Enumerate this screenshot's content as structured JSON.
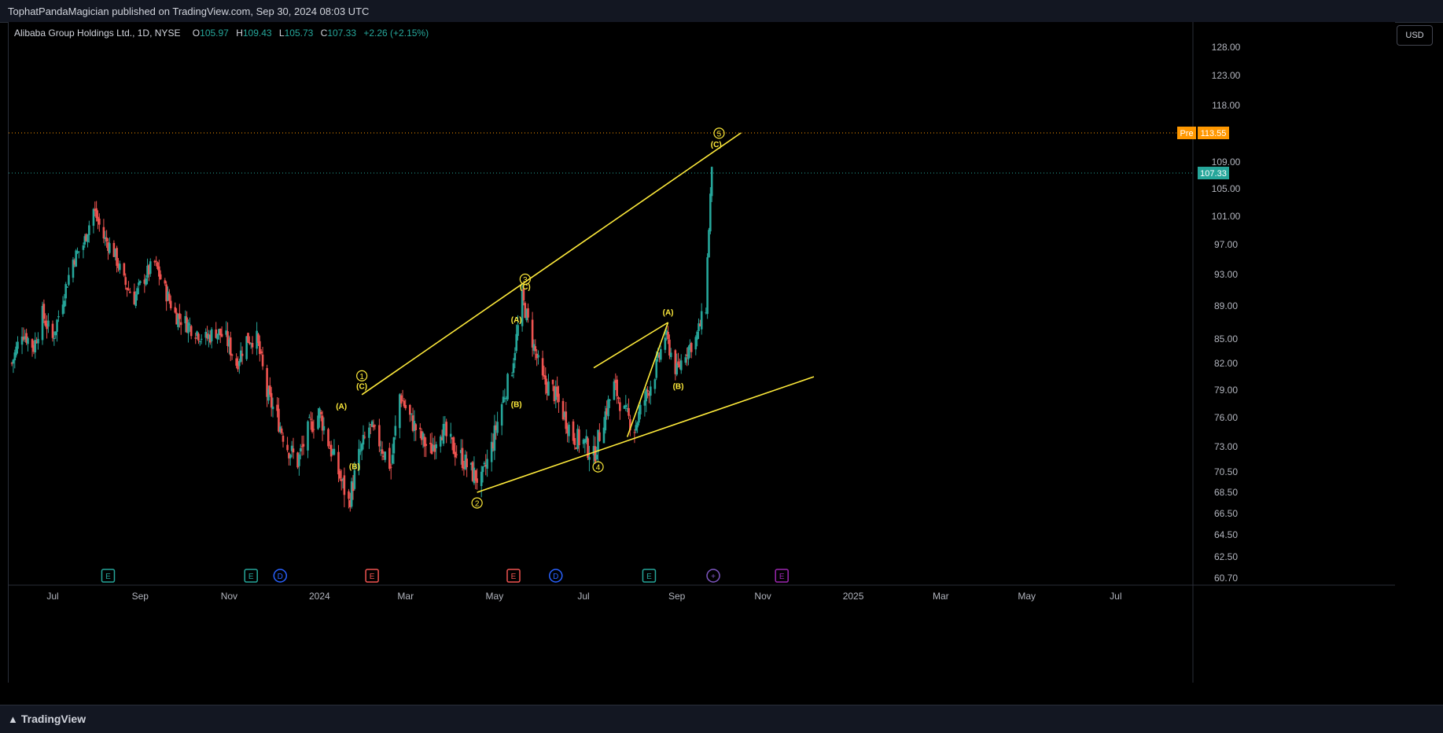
{
  "header": {
    "published": "TophatPandaMagician published on TradingView.com, Sep 30, 2024 08:03 UTC"
  },
  "legend": {
    "symbol": "Alibaba Group Holdings Ltd., 1D, NYSE",
    "open_label": "O",
    "open": "105.97",
    "high_label": "H",
    "high": "109.43",
    "low_label": "L",
    "low": "105.73",
    "close_label": "C",
    "close": "107.33",
    "change": "+2.26 (+2.15%)"
  },
  "currency_button": "USD",
  "footer": {
    "brand": "TradingView"
  },
  "colors": {
    "up": "#26a69a",
    "down": "#ef5350",
    "wave": "#ffeb3b",
    "pre": "#ff9800",
    "last": "#26a69a"
  },
  "chart_data": {
    "type": "candlestick",
    "symbol": "BABA",
    "interval": "1D",
    "y_axis_ticks": [
      128.0,
      123.0,
      118.0,
      113.55,
      109.0,
      105.0,
      101.0,
      97.0,
      93.0,
      89.0,
      85.0,
      82.0,
      79.0,
      76.0,
      73.0,
      70.5,
      68.5,
      66.5,
      64.5,
      62.5,
      60.7
    ],
    "y_axis_labels": [
      "128.00",
      "123.00",
      "118.00",
      "",
      "109.00",
      "105.00",
      "101.00",
      "97.00",
      "93.00",
      "89.00",
      "85.00",
      "82.00",
      "79.00",
      "76.00",
      "73.00",
      "70.50",
      "68.50",
      "66.50",
      "64.50",
      "62.50",
      "60.70"
    ],
    "x_axis_ticks": [
      {
        "label": "Jul",
        "date": "2023-07-03"
      },
      {
        "label": "Sep",
        "date": "2023-09-01"
      },
      {
        "label": "Nov",
        "date": "2023-11-01"
      },
      {
        "label": "2024",
        "date": "2024-01-02"
      },
      {
        "label": "Mar",
        "date": "2024-03-01"
      },
      {
        "label": "May",
        "date": "2024-05-01"
      },
      {
        "label": "Jul",
        "date": "2024-07-01"
      },
      {
        "label": "Sep",
        "date": "2024-09-03"
      },
      {
        "label": "Nov",
        "date": "2024-11-01"
      },
      {
        "label": "2025",
        "date": "2025-01-02"
      },
      {
        "label": "Mar",
        "date": "2025-03-03"
      },
      {
        "label": "May",
        "date": "2025-05-01"
      },
      {
        "label": "Jul",
        "date": "2025-07-01"
      }
    ],
    "price_lines": [
      {
        "tag": "Pre",
        "value": 113.55,
        "color": "#ff9800"
      },
      {
        "tag": "",
        "value": 107.33,
        "color": "#26a69a"
      }
    ],
    "price_path": [
      [
        "2023-06-05",
        82.0
      ],
      [
        "2023-06-12",
        86.0
      ],
      [
        "2023-06-20",
        84.0
      ],
      [
        "2023-06-26",
        88.0
      ],
      [
        "2023-07-03",
        85.0
      ],
      [
        "2023-07-10",
        90.0
      ],
      [
        "2023-07-17",
        95.0
      ],
      [
        "2023-07-24",
        97.0
      ],
      [
        "2023-07-31",
        102.0
      ],
      [
        "2023-08-07",
        98.0
      ],
      [
        "2023-08-14",
        96.0
      ],
      [
        "2023-08-21",
        92.0
      ],
      [
        "2023-08-28",
        90.0
      ],
      [
        "2023-09-05",
        93.0
      ],
      [
        "2023-09-11",
        94.5
      ],
      [
        "2023-09-18",
        91.0
      ],
      [
        "2023-09-25",
        88.0
      ],
      [
        "2023-10-02",
        87.0
      ],
      [
        "2023-10-09",
        86.0
      ],
      [
        "2023-10-16",
        85.0
      ],
      [
        "2023-10-23",
        86.0
      ],
      [
        "2023-10-30",
        85.0
      ],
      [
        "2023-11-06",
        82.0
      ],
      [
        "2023-11-13",
        85.0
      ],
      [
        "2023-11-20",
        85.0
      ],
      [
        "2023-11-27",
        78.5
      ],
      [
        "2023-12-04",
        76.0
      ],
      [
        "2023-12-11",
        73.0
      ],
      [
        "2023-12-18",
        71.5
      ],
      [
        "2023-12-26",
        75.0
      ],
      [
        "2024-01-02",
        76.5
      ],
      [
        "2024-01-08",
        73.5
      ],
      [
        "2024-01-16",
        70.0
      ],
      [
        "2024-01-22",
        67.5
      ],
      [
        "2024-01-29",
        72.0
      ],
      [
        "2024-02-05",
        75.0
      ],
      [
        "2024-02-12",
        73.5
      ],
      [
        "2024-02-20",
        71.0
      ],
      [
        "2024-02-26",
        78.5
      ],
      [
        "2024-03-04",
        76.0
      ],
      [
        "2024-03-11",
        74.0
      ],
      [
        "2024-03-18",
        72.5
      ],
      [
        "2024-03-25",
        75.0
      ],
      [
        "2024-04-02",
        73.0
      ],
      [
        "2024-04-08",
        72.0
      ],
      [
        "2024-04-15",
        70.5
      ],
      [
        "2024-04-22",
        69.5
      ],
      [
        "2024-04-29",
        73.0
      ],
      [
        "2024-05-06",
        77.5
      ],
      [
        "2024-05-13",
        81.5
      ],
      [
        "2024-05-20",
        90.0
      ],
      [
        "2024-05-28",
        84.0
      ],
      [
        "2024-06-03",
        80.0
      ],
      [
        "2024-06-10",
        79.0
      ],
      [
        "2024-06-17",
        76.5
      ],
      [
        "2024-06-24",
        74.0
      ],
      [
        "2024-07-01",
        73.5
      ],
      [
        "2024-07-08",
        72.0
      ],
      [
        "2024-07-15",
        76.0
      ],
      [
        "2024-07-22",
        79.5
      ],
      [
        "2024-07-29",
        76.5
      ],
      [
        "2024-08-05",
        75.0
      ],
      [
        "2024-08-12",
        78.0
      ],
      [
        "2024-08-19",
        81.0
      ],
      [
        "2024-08-26",
        85.5
      ],
      [
        "2024-09-03",
        81.0
      ],
      [
        "2024-09-09",
        83.5
      ],
      [
        "2024-09-16",
        85.0
      ],
      [
        "2024-09-23",
        89.0
      ],
      [
        "2024-09-24",
        95.0
      ],
      [
        "2024-09-26",
        104.0
      ],
      [
        "2024-09-27",
        107.33
      ]
    ],
    "trendlines": [
      {
        "from": [
          "2024-01-31",
          78.5
        ],
        "to": [
          "2024-10-17",
          113.55
        ]
      },
      {
        "from": [
          "2024-04-19",
          68.5
        ],
        "to": [
          "2024-12-06",
          80.5
        ]
      },
      {
        "from": [
          "2024-07-08",
          81.5
        ],
        "to": [
          "2024-08-28",
          87.0
        ]
      },
      {
        "from": [
          "2024-07-31",
          74.0
        ],
        "to": [
          "2024-08-28",
          87.0
        ]
      }
    ],
    "wave_labels": [
      {
        "text": "1",
        "circled": true,
        "date": "2024-01-31",
        "price": 80.6
      },
      {
        "text": "(C)",
        "date": "2024-01-31",
        "price": 79.5
      },
      {
        "text": "(A)",
        "date": "2024-01-17",
        "price": 77.3
      },
      {
        "text": "(B)",
        "date": "2024-01-26",
        "price": 71.1
      },
      {
        "text": "2",
        "circled": true,
        "date": "2024-04-19",
        "price": 67.5
      },
      {
        "text": "3",
        "circled": true,
        "date": "2024-05-22",
        "price": 92.4
      },
      {
        "text": "(C)",
        "date": "2024-05-22",
        "price": 91.5
      },
      {
        "text": "(A)",
        "date": "2024-05-16",
        "price": 87.4
      },
      {
        "text": "(B)",
        "date": "2024-05-16",
        "price": 77.5
      },
      {
        "text": "4",
        "circled": true,
        "date": "2024-07-11",
        "price": 71.0
      },
      {
        "text": "(A)",
        "date": "2024-08-28",
        "price": 88.3
      },
      {
        "text": "(B)",
        "date": "2024-09-04",
        "price": 79.5
      },
      {
        "text": "(C)",
        "date": "2024-09-30",
        "price": 111.8
      },
      {
        "text": "5",
        "circled": true,
        "date": "2024-10-02",
        "price": 113.5
      }
    ],
    "event_markers": [
      {
        "type": "E",
        "date": "2023-08-10",
        "color": "#26a69a"
      },
      {
        "type": "E",
        "date": "2023-11-16",
        "color": "#26a69a"
      },
      {
        "type": "D",
        "date": "2023-12-06",
        "color": "#2962ff"
      },
      {
        "type": "E",
        "date": "2024-02-07",
        "color": "#ef5350"
      },
      {
        "type": "E",
        "date": "2024-05-14",
        "color": "#ef5350"
      },
      {
        "type": "D",
        "date": "2024-06-12",
        "color": "#2962ff"
      },
      {
        "type": "E",
        "date": "2024-08-15",
        "color": "#26a69a"
      },
      {
        "type": "+",
        "date": "2024-09-28",
        "color": "#7e57c2"
      },
      {
        "type": "E",
        "date": "2024-11-14",
        "color": "#9c27b0"
      }
    ]
  }
}
